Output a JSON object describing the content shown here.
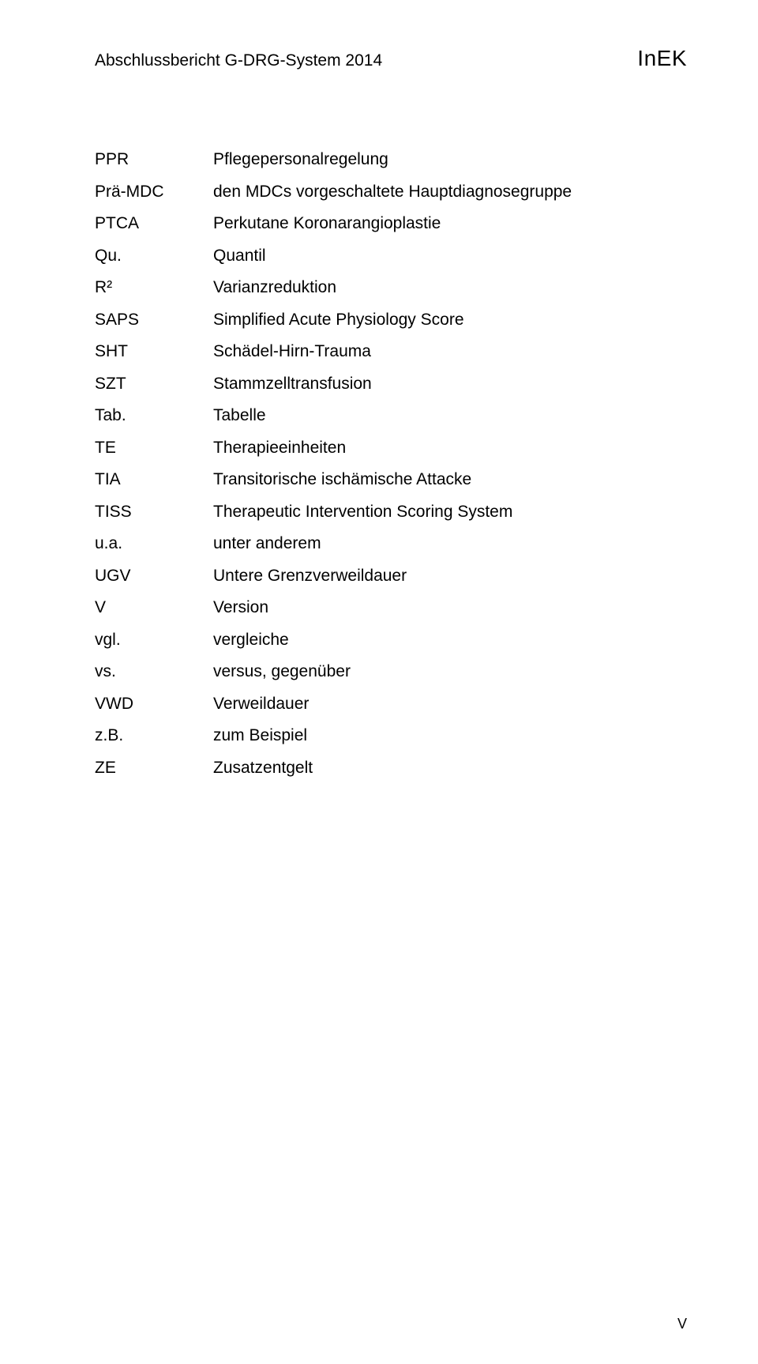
{
  "header": {
    "left": "Abschlussbericht G-DRG-System 2014",
    "right": "InEK"
  },
  "abbreviations": [
    {
      "key": "PPR",
      "val": "Pflegepersonalregelung"
    },
    {
      "key": "Prä-MDC",
      "val": "den MDCs vorgeschaltete Hauptdiagnosegruppe"
    },
    {
      "key": "PTCA",
      "val": "Perkutane Koronarangioplastie"
    },
    {
      "key": "Qu.",
      "val": "Quantil"
    },
    {
      "key": "R²",
      "val": "Varianzreduktion"
    },
    {
      "key": "SAPS",
      "val": "Simplified Acute Physiology Score"
    },
    {
      "key": "SHT",
      "val": "Schädel-Hirn-Trauma"
    },
    {
      "key": "SZT",
      "val": "Stammzelltransfusion"
    },
    {
      "key": "Tab.",
      "val": "Tabelle"
    },
    {
      "key": "TE",
      "val": "Therapieeinheiten"
    },
    {
      "key": "TIA",
      "val": "Transitorische ischämische Attacke"
    },
    {
      "key": "TISS",
      "val": "Therapeutic Intervention Scoring System"
    },
    {
      "key": "u.a.",
      "val": "unter anderem"
    },
    {
      "key": "UGV",
      "val": "Untere Grenzverweildauer"
    },
    {
      "key": "V",
      "val": "Version"
    },
    {
      "key": "vgl.",
      "val": "vergleiche"
    },
    {
      "key": "vs.",
      "val": "versus, gegenüber"
    },
    {
      "key": "VWD",
      "val": "Verweildauer"
    },
    {
      "key": "z.B.",
      "val": "zum Beispiel"
    },
    {
      "key": "ZE",
      "val": "Zusatzentgelt"
    }
  ],
  "page_number": "V"
}
